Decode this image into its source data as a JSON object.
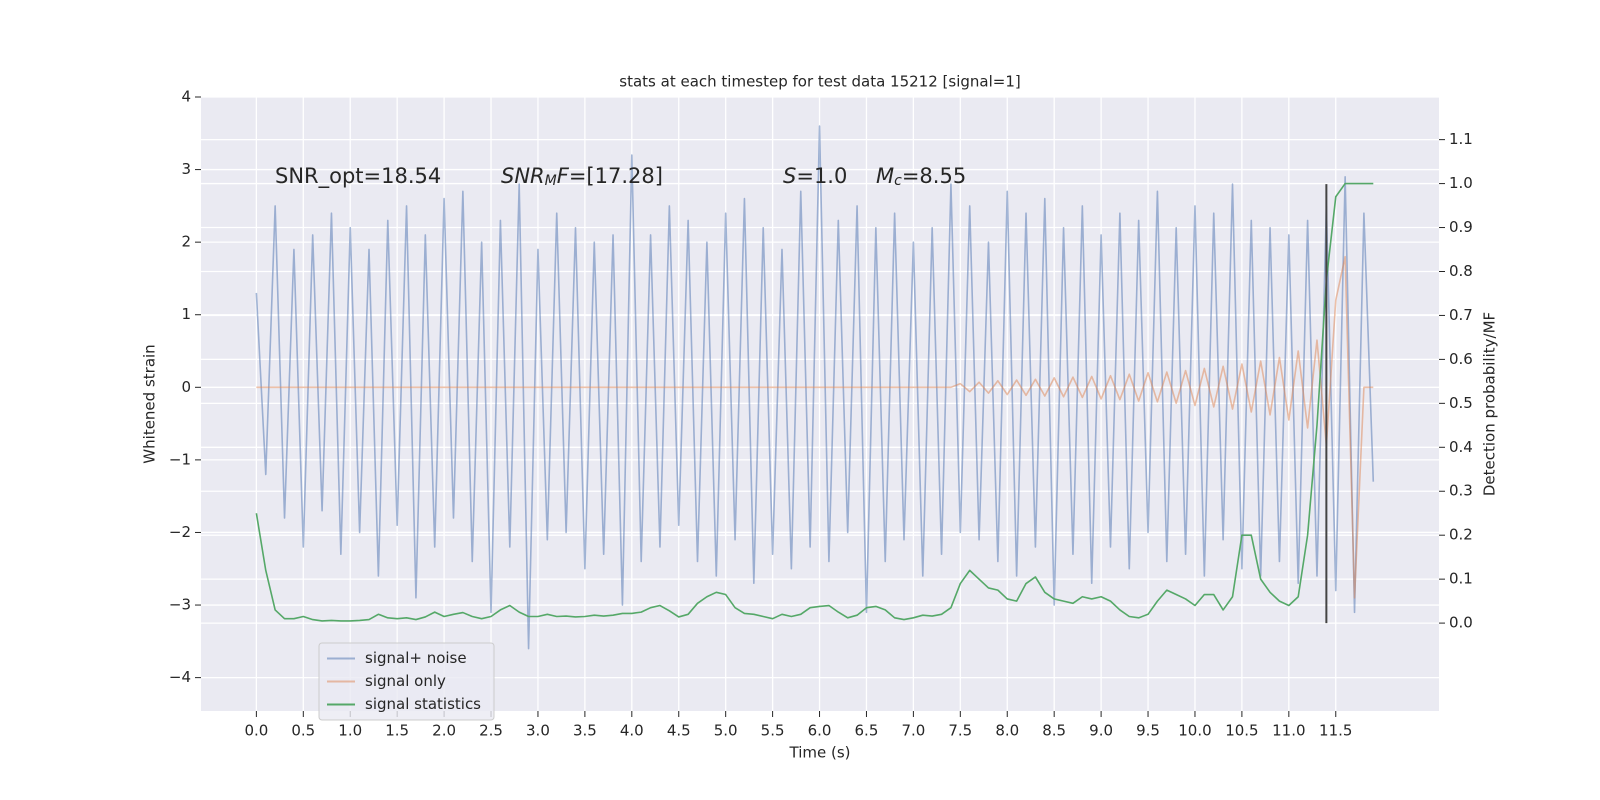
{
  "chart_data": {
    "type": "line",
    "title": "stats at each timestep for test data 15212 [signal=1]",
    "xlabel": "Time (s)",
    "ylabel": "Whitened strain",
    "y2label": "Detection probability/MF",
    "annotations": [
      [
        "SNR_opt=18.54"
      ],
      [
        "SNR",
        "M",
        "F",
        "=[17.28]"
      ],
      [
        "S",
        "=1.0"
      ],
      [
        "M",
        "c",
        "=8.55"
      ]
    ],
    "xlim": [
      -0.59,
      12.6
    ],
    "ylim": [
      -4.46,
      4.0
    ],
    "y2lim": [
      -0.2,
      1.197
    ],
    "xticks": [
      {
        "value": 0,
        "label": "0.0"
      },
      0.5,
      {
        "value": 1,
        "label": "1.0"
      },
      1.5,
      {
        "value": 2,
        "label": "2.0"
      },
      2.5,
      {
        "value": 3,
        "label": "3.0"
      },
      3.5,
      {
        "value": 4,
        "label": "4.0"
      },
      4.5,
      {
        "value": 5,
        "label": "5.0"
      },
      5.5,
      {
        "value": 6,
        "label": "6.0"
      },
      6.5,
      {
        "value": 7,
        "label": "7.0"
      },
      7.5,
      {
        "value": 8,
        "label": "8.0"
      },
      8.5,
      {
        "value": 9,
        "label": "9.0"
      },
      9.5,
      {
        "value": 10,
        "label": "10.0"
      },
      10.5,
      {
        "value": 11,
        "label": "11.0"
      },
      11.5
    ],
    "yticks": [
      {
        "value": -4,
        "label": "−4"
      },
      {
        "value": -3,
        "label": "−3"
      },
      {
        "value": -2,
        "label": "−2"
      },
      {
        "value": -1,
        "label": "−1"
      },
      0,
      1,
      2,
      3,
      4
    ],
    "y2ticks": [
      {
        "value": 0,
        "label": "0.0"
      },
      0.1,
      0.2,
      0.3,
      0.4,
      0.5,
      0.6,
      0.7,
      0.8,
      0.9,
      {
        "value": 1,
        "label": "1.0"
      },
      1.1
    ],
    "grid": true,
    "legend": "lower left",
    "vline": {
      "x": 11.4,
      "ymin": -3.25,
      "ymax": 2.8,
      "color": "#444444"
    },
    "x": [
      0,
      0.1,
      0.2,
      0.3,
      0.4,
      0.5,
      0.6,
      0.7,
      0.8,
      0.9,
      1,
      1.1,
      1.2,
      1.3,
      1.4,
      1.5,
      1.6,
      1.7,
      1.8,
      1.9,
      2,
      2.1,
      2.2,
      2.3,
      2.4,
      2.5,
      2.6,
      2.7,
      2.8,
      2.9,
      3,
      3.1,
      3.2,
      3.3,
      3.4,
      3.5,
      3.6,
      3.7,
      3.8,
      3.9,
      4,
      4.1,
      4.2,
      4.3,
      4.4,
      4.5,
      4.6,
      4.7,
      4.8,
      4.9,
      5,
      5.1,
      5.2,
      5.3,
      5.4,
      5.5,
      5.6,
      5.7,
      5.8,
      5.9,
      6,
      6.1,
      6.2,
      6.3,
      6.4,
      6.5,
      6.6,
      6.7,
      6.8,
      6.9,
      7,
      7.1,
      7.2,
      7.3,
      7.4,
      7.5,
      7.6,
      7.7,
      7.8,
      7.9,
      8,
      8.1,
      8.2,
      8.3,
      8.4,
      8.5,
      8.6,
      8.7,
      8.8,
      8.9,
      9,
      9.1,
      9.2,
      9.3,
      9.4,
      9.5,
      9.6,
      9.7,
      9.8,
      9.9,
      10,
      10.1,
      10.2,
      10.3,
      10.4,
      10.5,
      10.6,
      10.7,
      10.8,
      10.9,
      11,
      11.1,
      11.2,
      11.3,
      11.4,
      11.5,
      11.6,
      11.7,
      11.8,
      11.9
    ],
    "series": [
      {
        "name": "signal+ noise",
        "color": "#4c72b0",
        "alpha": 0.5,
        "values": [
          1.3,
          -1.2,
          2.5,
          -1.8,
          1.9,
          -2.2,
          2.1,
          -1.7,
          2.4,
          -2.3,
          2.2,
          -2.0,
          1.9,
          -2.6,
          2.3,
          -1.9,
          2.5,
          -2.9,
          2.1,
          -2.2,
          2.6,
          -1.8,
          2.7,
          -2.4,
          2.0,
          -3.1,
          2.3,
          -2.2,
          2.8,
          -3.6,
          1.9,
          -2.1,
          2.4,
          -2.0,
          2.2,
          -2.5,
          2.0,
          -2.3,
          2.1,
          -3.0,
          3.2,
          -2.4,
          2.1,
          -2.2,
          2.5,
          -1.9,
          2.3,
          -2.4,
          2.0,
          -2.6,
          2.4,
          -2.1,
          2.6,
          -2.7,
          2.2,
          -2.3,
          1.9,
          -2.5,
          2.7,
          -2.2,
          3.6,
          -2.4,
          2.3,
          -2.0,
          2.5,
          -3.1,
          2.2,
          -2.4,
          2.4,
          -2.1,
          2.0,
          -2.6,
          2.2,
          -2.3,
          2.8,
          -2.0,
          2.5,
          -2.1,
          2.0,
          -2.4,
          2.7,
          -2.6,
          2.4,
          -2.2,
          2.6,
          -3.0,
          2.2,
          -2.3,
          2.5,
          -2.7,
          2.1,
          -2.2,
          2.4,
          -2.5,
          2.3,
          -2.0,
          2.7,
          -2.4,
          2.2,
          -2.3,
          2.5,
          -2.6,
          2.4,
          -2.1,
          2.8,
          -2.5,
          2.3,
          -2.6,
          2.2,
          -2.4,
          2.1,
          -2.7,
          2.3,
          -2.6,
          2.5,
          -2.8,
          2.9,
          -3.1,
          2.4,
          -1.3
        ]
      },
      {
        "name": "signal only",
        "color": "#dd8452",
        "alpha": 0.5,
        "values": [
          0,
          0,
          0,
          0,
          0,
          0,
          0,
          0,
          0,
          0,
          0,
          0,
          0,
          0,
          0,
          0,
          0,
          0,
          0,
          0,
          0,
          0,
          0,
          0,
          0,
          0,
          0,
          0,
          0,
          0,
          0,
          0,
          0,
          0,
          0,
          0,
          0,
          0,
          0,
          0,
          0,
          0,
          0,
          0,
          0,
          0,
          0,
          0,
          0,
          0,
          0,
          0,
          0,
          0,
          0,
          0,
          0,
          0,
          0,
          0,
          0,
          0,
          0,
          0,
          0,
          0,
          0,
          0,
          0,
          0,
          0,
          0,
          0,
          0,
          0,
          0.05,
          -0.06,
          0.07,
          -0.08,
          0.09,
          -0.1,
          0.1,
          -0.11,
          0.11,
          -0.12,
          0.13,
          -0.13,
          0.14,
          -0.14,
          0.15,
          -0.16,
          0.16,
          -0.17,
          0.18,
          -0.19,
          0.2,
          -0.2,
          0.21,
          -0.22,
          0.23,
          -0.25,
          0.26,
          -0.27,
          0.29,
          -0.3,
          0.32,
          -0.34,
          0.36,
          -0.38,
          0.41,
          -0.45,
          0.5,
          -0.56,
          0.65,
          -0.8,
          1.2,
          1.8,
          -2.9,
          0,
          0
        ]
      },
      {
        "name": "signal statistics",
        "color": "#55a868",
        "axis": "y2",
        "values": [
          0.25,
          0.12,
          0.03,
          0.01,
          0.01,
          0.015,
          0.008,
          0.005,
          0.006,
          0.005,
          0.005,
          0.006,
          0.008,
          0.02,
          0.012,
          0.01,
          0.012,
          0.008,
          0.014,
          0.025,
          0.015,
          0.02,
          0.024,
          0.015,
          0.01,
          0.015,
          0.03,
          0.04,
          0.025,
          0.015,
          0.015,
          0.02,
          0.015,
          0.016,
          0.014,
          0.015,
          0.018,
          0.016,
          0.018,
          0.022,
          0.022,
          0.025,
          0.035,
          0.04,
          0.028,
          0.014,
          0.02,
          0.045,
          0.06,
          0.07,
          0.065,
          0.035,
          0.022,
          0.02,
          0.015,
          0.01,
          0.02,
          0.015,
          0.02,
          0.035,
          0.038,
          0.04,
          0.025,
          0.012,
          0.018,
          0.035,
          0.038,
          0.03,
          0.012,
          0.008,
          0.012,
          0.018,
          0.016,
          0.02,
          0.035,
          0.09,
          0.12,
          0.1,
          0.08,
          0.075,
          0.055,
          0.05,
          0.09,
          0.105,
          0.07,
          0.055,
          0.05,
          0.045,
          0.06,
          0.055,
          0.06,
          0.05,
          0.03,
          0.015,
          0.012,
          0.02,
          0.05,
          0.075,
          0.065,
          0.055,
          0.04,
          0.065,
          0.065,
          0.03,
          0.06,
          0.2,
          0.2,
          0.1,
          0.07,
          0.05,
          0.04,
          0.06,
          0.2,
          0.45,
          0.78,
          0.97,
          1.0,
          1.0,
          1.0,
          1.0
        ]
      }
    ]
  }
}
